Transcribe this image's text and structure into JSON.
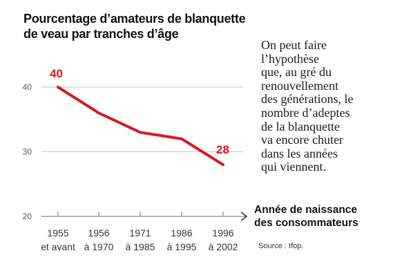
{
  "chart_data": {
    "type": "line",
    "title_lines": [
      "Pourcentage d’amateurs de blanquette",
      "de veau par tranches d’âge"
    ],
    "categories": [
      [
        "1955",
        "et avant"
      ],
      [
        "1956",
        "à 1970"
      ],
      [
        "1971",
        "à 1985"
      ],
      [
        "1986",
        "à 1995"
      ],
      [
        "1996",
        "à 2002"
      ]
    ],
    "values": [
      40,
      36,
      33,
      32,
      28
    ],
    "data_labels": {
      "first": "40",
      "last": "28"
    },
    "yticks": [
      20,
      30,
      40
    ],
    "ylim": [
      20,
      40
    ],
    "xlabel_lines": [
      "Année de naissance",
      "des consommateurs"
    ],
    "grid": true,
    "line_color": "#d7191f"
  },
  "note_lines": [
    "On peut faire",
    "l’hypothèse",
    "que, au gré du",
    "renouvellement",
    "des générations, le",
    "nombre d’adeptes",
    "de la blanquette",
    "va encore chuter",
    "dans les années",
    "qui viennent."
  ],
  "source": "Source : Ifop."
}
